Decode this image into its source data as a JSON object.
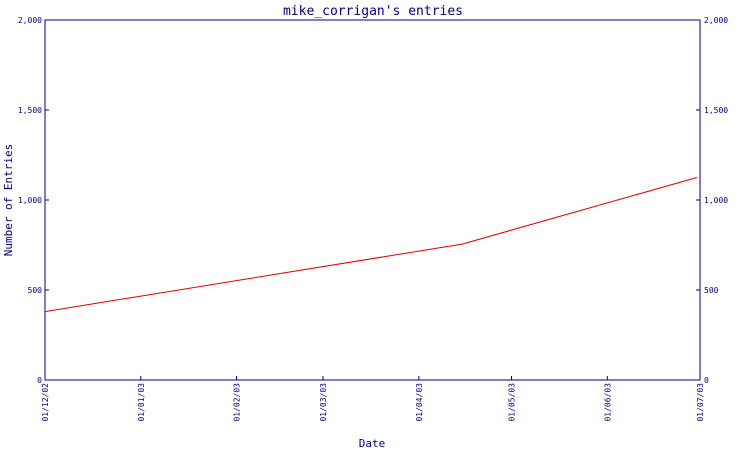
{
  "chart_data": {
    "type": "line",
    "title": "mike_corrigan's entries",
    "xlabel": "Date",
    "ylabel": "Number of Entries",
    "x_ticks": [
      "01/12/02",
      "01/01/03",
      "01/02/03",
      "01/03/03",
      "01/04/03",
      "01/05/03",
      "01/06/03",
      "01/07/03"
    ],
    "y_ticks": [
      "0",
      "500",
      "1,000",
      "1,500",
      "2,000"
    ],
    "ylim": [
      0,
      2000
    ],
    "grid": false,
    "right_axis": true,
    "series": [
      {
        "color": "#e00000",
        "points": [
          {
            "x": "2002-12-01",
            "y": 380
          },
          {
            "x": "2003-04-15",
            "y": 755
          },
          {
            "x": "2003-06-30",
            "y": 1125
          }
        ]
      }
    ],
    "colors": {
      "axis": "#000080",
      "title": "#000080",
      "label": "#000080",
      "line": "#e00000",
      "background": "#ffffff"
    }
  }
}
